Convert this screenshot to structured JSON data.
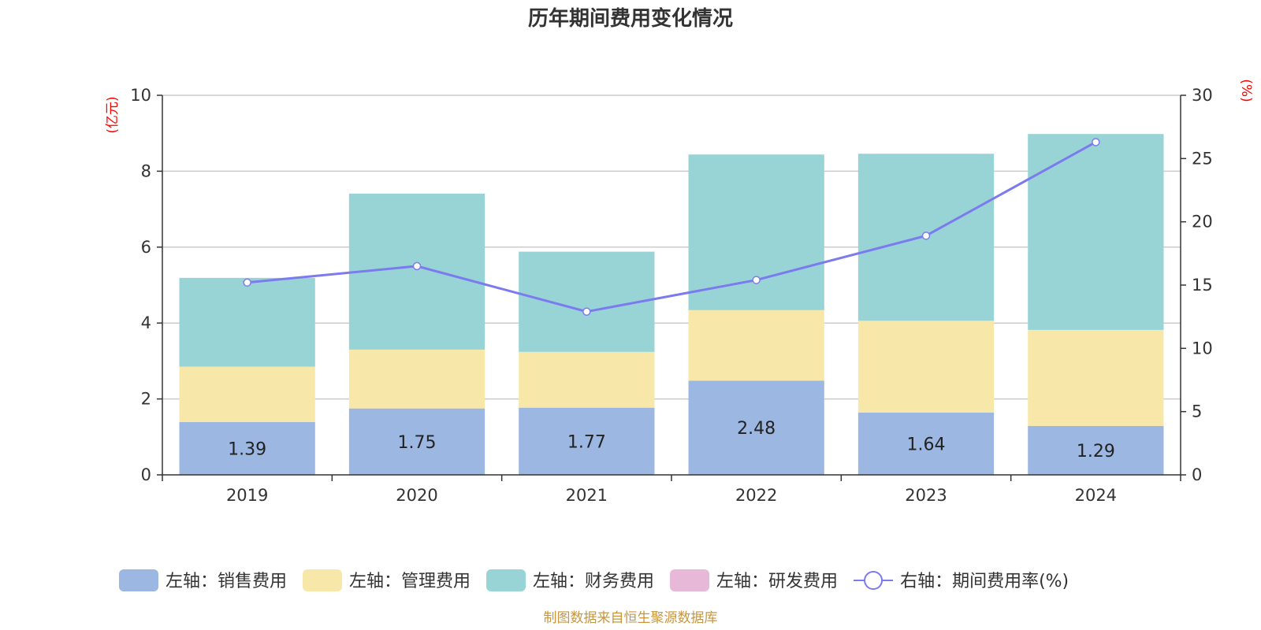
{
  "chart_data": {
    "type": "bar",
    "title": "历年期间费用变化情况",
    "categories": [
      "2019",
      "2020",
      "2021",
      "2022",
      "2023",
      "2024"
    ],
    "left_axis": {
      "unit": "(亿元)",
      "ylim": [
        0,
        10
      ],
      "ticks": [
        "0",
        "2",
        "4",
        "6",
        "8",
        "10"
      ]
    },
    "right_axis": {
      "unit": "(%)",
      "ylim": [
        0,
        30
      ],
      "ticks": [
        "0",
        "5",
        "10",
        "15",
        "20",
        "25",
        "30"
      ]
    },
    "series": [
      {
        "name": "左轴：销售费用",
        "kind": "bar",
        "stack": true,
        "color": "#9bb7e2",
        "values": [
          1.39,
          1.75,
          1.77,
          2.48,
          1.64,
          1.29
        ],
        "labels": [
          "1.39",
          "1.75",
          "1.77",
          "2.48",
          "1.64",
          "1.29"
        ]
      },
      {
        "name": "左轴：管理费用",
        "kind": "bar",
        "stack": true,
        "color": "#f7e7a9",
        "values": [
          1.46,
          1.55,
          1.47,
          1.86,
          2.42,
          2.53
        ]
      },
      {
        "name": "左轴：财务费用",
        "kind": "bar",
        "stack": true,
        "color": "#98d4d5",
        "values": [
          2.34,
          4.11,
          2.64,
          4.1,
          4.4,
          5.16
        ]
      },
      {
        "name": "左轴：研发费用",
        "kind": "bar",
        "stack": true,
        "color": "#e8b8d8",
        "values": [
          0,
          0,
          0,
          0,
          0,
          0
        ]
      },
      {
        "name": "右轴：期间费用率(%)",
        "kind": "line",
        "axis": "right",
        "color": "#7b7bef",
        "values": [
          15.2,
          16.5,
          12.9,
          15.4,
          18.9,
          26.3
        ]
      }
    ],
    "grid": true,
    "legend_position": "bottom"
  },
  "footer": {
    "source": "制图数据来自恒生聚源数据库"
  }
}
